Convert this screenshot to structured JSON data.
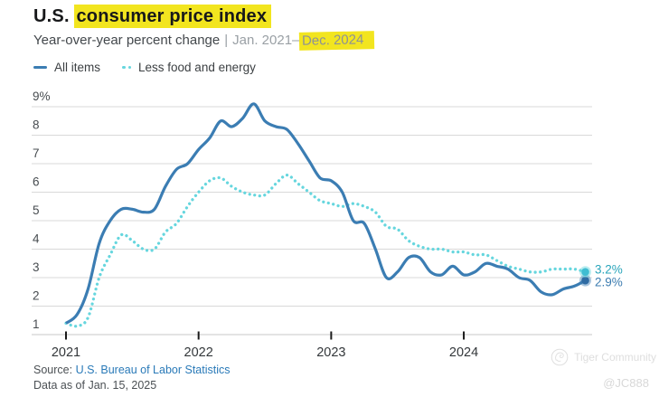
{
  "header": {
    "title_prefix": "U.S. ",
    "title_highlight": "consumer price index",
    "subtitle_main": "Year-over-year percent change",
    "subtitle_separator": "|",
    "subtitle_range_prefix": "Jan. 2021–",
    "subtitle_range_highlight": "Dec. 2024"
  },
  "chart_data": {
    "type": "line",
    "title": "U.S. consumer price index",
    "subtitle": "Year-over-year percent change | Jan. 2021–Dec. 2024",
    "x_range": "Jan. 2021–Dec. 2024",
    "x_frequency": "monthly",
    "x_tick_labels": [
      "2021",
      "2022",
      "2023",
      "2024"
    ],
    "points_per_year": 12,
    "ylim": [
      1,
      9
    ],
    "y_tick_labels": [
      "1",
      "2",
      "3",
      "4",
      "5",
      "6",
      "7",
      "8",
      "9%"
    ],
    "grid": "horizontal",
    "legend_position": "top-left",
    "series": [
      {
        "name": "All items",
        "style": "solid",
        "color": "#3b7db3",
        "end_dot_color": "#2f6ba3",
        "end_label": "2.9%",
        "end_label_color": "#3c7cb0",
        "values": [
          1.4,
          1.7,
          2.6,
          4.2,
          5.0,
          5.4,
          5.4,
          5.3,
          5.4,
          6.2,
          6.8,
          7.0,
          7.5,
          7.9,
          8.5,
          8.3,
          8.6,
          9.1,
          8.5,
          8.3,
          8.2,
          7.7,
          7.1,
          6.5,
          6.4,
          6.0,
          5.0,
          4.9,
          4.0,
          3.0,
          3.2,
          3.7,
          3.7,
          3.2,
          3.1,
          3.4,
          3.1,
          3.2,
          3.5,
          3.4,
          3.3,
          3.0,
          2.9,
          2.5,
          2.4,
          2.6,
          2.7,
          2.9
        ]
      },
      {
        "name": "Less food and energy",
        "style": "dotted",
        "color": "#66d6de",
        "end_dot_color": "#3fbdd2",
        "end_label": "3.2%",
        "end_label_color": "#2aa5bb",
        "values": [
          1.4,
          1.3,
          1.6,
          3.0,
          3.8,
          4.5,
          4.3,
          4.0,
          4.0,
          4.6,
          4.9,
          5.5,
          6.0,
          6.4,
          6.5,
          6.2,
          6.0,
          5.9,
          5.9,
          6.3,
          6.6,
          6.3,
          6.0,
          5.7,
          5.6,
          5.5,
          5.6,
          5.5,
          5.3,
          4.8,
          4.7,
          4.3,
          4.1,
          4.0,
          4.0,
          3.9,
          3.9,
          3.8,
          3.8,
          3.6,
          3.4,
          3.3,
          3.2,
          3.2,
          3.3,
          3.3,
          3.3,
          3.2
        ]
      }
    ],
    "colors": {
      "grid": "#d9d9d9",
      "axis": "#c7c7c7",
      "tick": "#1a1a1a",
      "y_label": "#474c50",
      "x_label": "#33373a"
    }
  },
  "footer": {
    "source_prefix": "Source:",
    "source_link": "U.S. Bureau of Labor Statistics",
    "data_as_of": "Data as of Jan. 15, 2025"
  },
  "watermark": {
    "brand": "Tiger Community",
    "handle": "@JC888"
  }
}
